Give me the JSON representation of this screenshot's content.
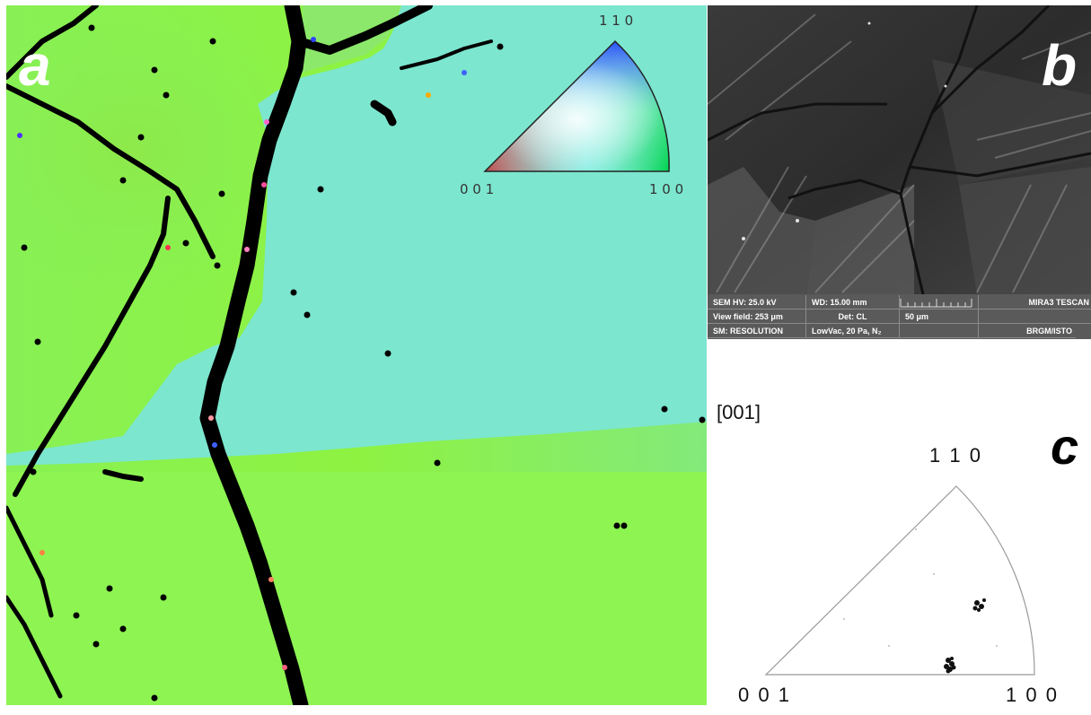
{
  "panels": {
    "a": {
      "label": "a",
      "legend": {
        "top": "1 1 0",
        "left": "0 0 1",
        "right": "1 0 0"
      },
      "colors": {
        "green_grain": "#8ef550",
        "cyan_grain": "#7ce6cf",
        "boundary": "#000000"
      }
    },
    "b": {
      "label": "b",
      "sem_info": {
        "hv": "SEM HV: 25.0 kV",
        "wd": "WD: 15.00 mm",
        "brand": "MIRA3 TESCAN",
        "view_field": "View field: 253 μm",
        "det": "Det: CL",
        "scale": "50 μm",
        "sm": "SM: RESOLUTION",
        "vac": "LowVac, 20 Pa, N₂",
        "org": "BRGM/ISTO"
      }
    },
    "c": {
      "label": "c",
      "direction": "[001]",
      "top": "1 1 0",
      "left": "0 0 1",
      "right": "1 0 0"
    }
  }
}
